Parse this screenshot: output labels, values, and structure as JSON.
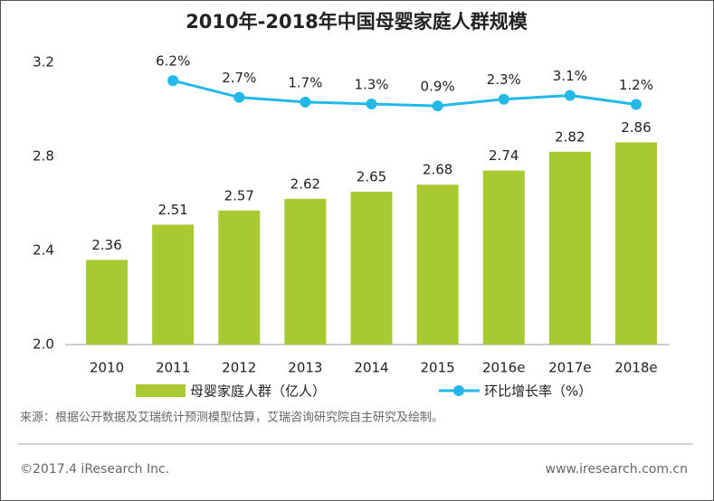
{
  "chart_data": {
    "type": "bar",
    "title": "2010年-2018年中国母婴家庭人群规模",
    "categories": [
      "2010",
      "2011",
      "2012",
      "2013",
      "2014",
      "2015",
      "2016e",
      "2017e",
      "2018e"
    ],
    "series": [
      {
        "name": "母婴家庭人群（亿人）",
        "type": "bar",
        "color": "#a8c932",
        "values": [
          2.36,
          2.51,
          2.57,
          2.62,
          2.65,
          2.68,
          2.74,
          2.82,
          2.86
        ]
      },
      {
        "name": "环比增长率（%）",
        "type": "line",
        "axis": "y2",
        "color": "#22b8e8",
        "values": [
          null,
          6.2,
          2.7,
          1.7,
          1.3,
          0.9,
          2.3,
          3.1,
          1.2
        ],
        "value_labels": [
          null,
          "6.2%",
          "2.7%",
          "1.7%",
          "1.3%",
          "0.9%",
          "2.3%",
          "3.1%",
          "1.2%"
        ]
      }
    ],
    "ylim": [
      2.0,
      3.2
    ],
    "yticks": [
      {
        "value": 2.0,
        "label": "2.0"
      },
      2.4,
      2.8,
      3.2
    ],
    "y2lim": [
      -49,
      10
    ],
    "grid": false,
    "legend": "bottom",
    "source": "来源：根据公开数据及艾瑞统计预测模型估算，艾瑞咨询研究院自主研究及绘制。",
    "copyright": "©2017.4 iResearch Inc.",
    "website": "www.iresearch.com.cn"
  }
}
